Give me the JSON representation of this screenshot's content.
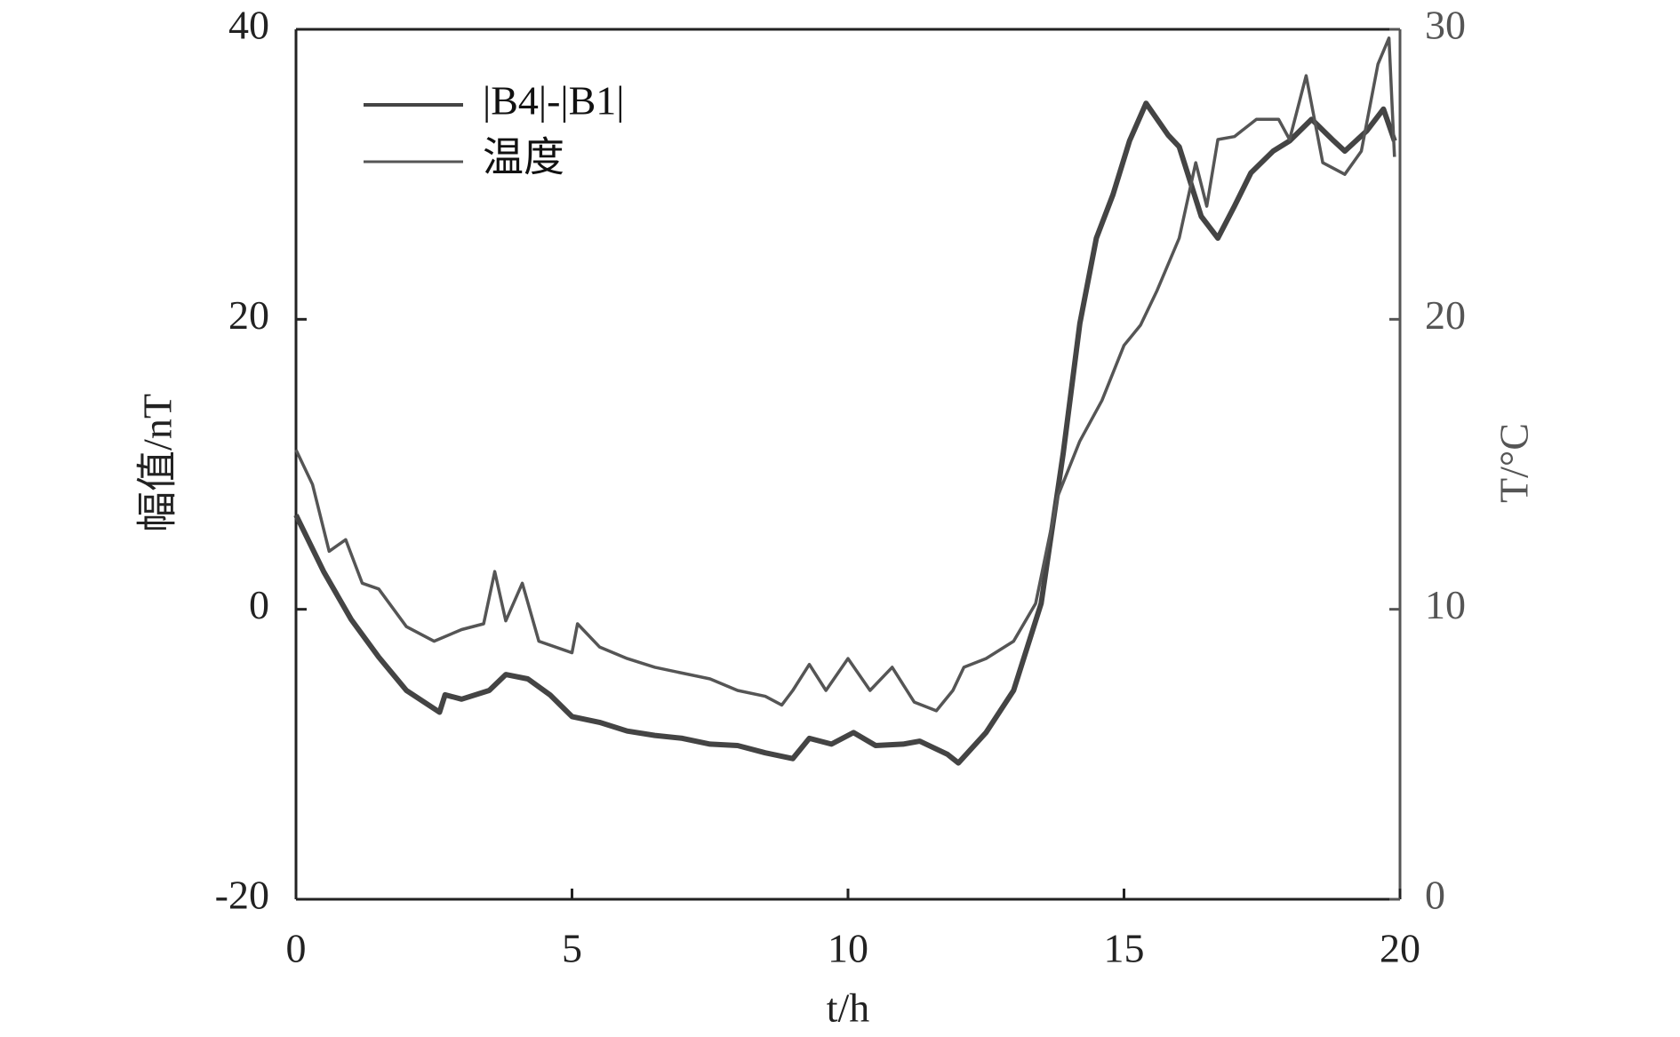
{
  "chart_data": {
    "type": "line",
    "xlabel": "t/h",
    "ylabel": "幅值/nT",
    "y2label": "T/°C",
    "xlim": [
      0,
      20
    ],
    "xticks": [
      0,
      5,
      10,
      15,
      20
    ],
    "ylim": [
      -20,
      40
    ],
    "yticks": [
      -20,
      0,
      20,
      40
    ],
    "y2lim": [
      0,
      30
    ],
    "y2ticks": [
      0,
      10,
      20,
      30
    ],
    "legend": "upper left",
    "x": [
      0,
      0.5,
      1,
      1.5,
      2,
      2.6,
      2.7,
      3,
      3.5,
      3.8,
      4.2,
      4.6,
      5,
      5.5,
      6,
      6.5,
      7,
      7.5,
      8,
      8.5,
      9,
      9.3,
      9.7,
      10.1,
      10.5,
      11,
      11.3,
      11.8,
      12,
      12.5,
      13,
      13.5,
      13.9,
      14.2,
      14.5,
      14.8,
      15.1,
      15.4,
      15.8,
      16,
      16.4,
      16.7,
      17,
      17.3,
      17.7,
      18,
      18.4,
      18.8,
      19,
      19.4,
      19.7,
      19.9
    ],
    "series": [
      {
        "name": "|B4|-|B1|",
        "color": "#444444",
        "values": [
          6.5,
          2.6,
          -0.7,
          -3.3,
          -5.6,
          -7.1,
          -5.9,
          -6.2,
          -5.6,
          -4.5,
          -4.8,
          -5.9,
          -7.4,
          -7.8,
          -8.4,
          -8.7,
          -8.9,
          -9.3,
          -9.4,
          -9.9,
          -10.3,
          -8.9,
          -9.3,
          -8.5,
          -9.4,
          -9.3,
          -9.1,
          -10.0,
          -10.6,
          -8.5,
          -5.6,
          0.4,
          10.8,
          19.7,
          25.6,
          28.6,
          32.3,
          34.9,
          32.7,
          31.9,
          27.1,
          25.6,
          27.8,
          30.1,
          31.6,
          32.3,
          33.8,
          32.3,
          31.6,
          33.0,
          34.5,
          32.3
        ]
      },
      {
        "name": "温度",
        "color": "#555555",
        "axis": "y2",
        "x": [
          0,
          0.3,
          0.6,
          0.9,
          1.2,
          1.5,
          2,
          2.5,
          3,
          3.4,
          3.6,
          3.8,
          4.1,
          4.4,
          5,
          5.1,
          5.5,
          6,
          6.5,
          7,
          7.5,
          8,
          8.5,
          8.8,
          9,
          9.3,
          9.6,
          10,
          10.4,
          10.8,
          11.2,
          11.6,
          11.9,
          12.1,
          12.5,
          13,
          13.4,
          13.8,
          14.2,
          14.6,
          15,
          15.3,
          15.6,
          16,
          16.3,
          16.5,
          16.7,
          17,
          17.4,
          17.8,
          18,
          18.3,
          18.6,
          19,
          19.3,
          19.6,
          19.8,
          19.9
        ],
        "values": [
          15.5,
          14.3,
          12.0,
          12.4,
          10.9,
          10.7,
          9.4,
          8.9,
          9.3,
          9.5,
          11.3,
          9.6,
          10.9,
          8.9,
          8.5,
          9.5,
          8.7,
          8.3,
          8.0,
          7.8,
          7.6,
          7.2,
          7.0,
          6.7,
          7.2,
          8.1,
          7.2,
          8.3,
          7.2,
          8.0,
          6.8,
          6.5,
          7.2,
          8.0,
          8.3,
          8.9,
          10.2,
          13.9,
          15.8,
          17.2,
          19.1,
          19.8,
          21.0,
          22.8,
          25.4,
          23.9,
          26.2,
          26.3,
          26.9,
          26.9,
          26.2,
          28.4,
          25.4,
          25.0,
          25.8,
          28.8,
          29.7,
          25.6
        ]
      }
    ]
  }
}
